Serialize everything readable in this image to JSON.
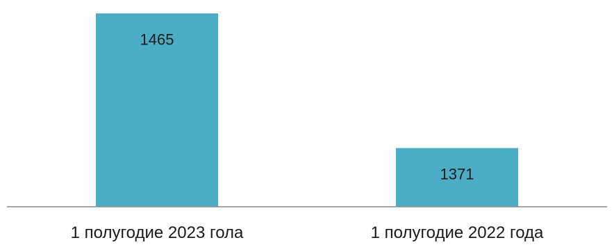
{
  "chart_data": {
    "type": "bar",
    "categories": [
      "1 полугодие 2023 гола",
      "1 полугодие 2022 года"
    ],
    "values": [
      1465,
      1371
    ],
    "title": "",
    "xlabel": "",
    "ylabel": "",
    "ylim": [
      1330,
      1470
    ],
    "grid": false,
    "legend": "none",
    "data_labels": true,
    "colors": {
      "bar": "#4BACC6",
      "axis": "#8c8c8c",
      "text": "#1a1a1a"
    }
  }
}
